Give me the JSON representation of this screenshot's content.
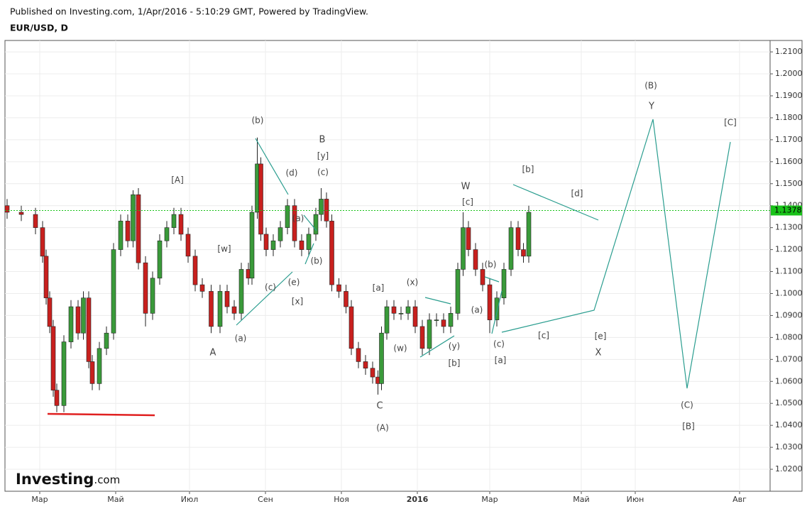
{
  "header": {
    "published": "Published on Investing.com, 1/Apr/2016 - 5:10:29 GMT, Powered by TradingView.",
    "symbol": "EUR/USD, D"
  },
  "logo": {
    "brand": "Investing",
    "suffix": ".com"
  },
  "chart_data": {
    "type": "candlestick",
    "x": [
      0,
      8,
      16,
      20,
      22,
      24,
      26,
      28,
      32,
      36,
      40,
      43,
      46,
      48,
      52,
      56,
      60,
      64,
      68,
      71,
      74,
      78,
      82,
      86,
      90,
      94,
      98,
      102,
      106,
      110,
      115,
      120,
      124,
      128,
      132,
      136,
      138,
      141,
      143,
      146,
      150,
      154,
      158,
      162,
      166,
      170,
      174,
      177,
      180,
      183,
      187,
      191,
      194,
      198,
      202,
      206,
      209,
      211,
      214,
      218,
      222,
      226,
      230,
      234,
      238,
      242,
      246,
      250,
      254,
      257,
      260,
      264,
      268,
      272,
      276,
      280,
      284,
      288,
      291,
      294
    ],
    "open": [
      1.14,
      1.137,
      1.136,
      1.13,
      1.117,
      1.098,
      1.085,
      1.056,
      1.049,
      1.078,
      1.094,
      1.082,
      1.098,
      1.069,
      1.059,
      1.075,
      1.082,
      1.12,
      1.133,
      1.124,
      1.145,
      1.114,
      1.091,
      1.107,
      1.124,
      1.13,
      1.136,
      1.127,
      1.117,
      1.104,
      1.101,
      1.085,
      1.101,
      1.094,
      1.091,
      1.111,
      1.107,
      1.137,
      1.159,
      1.127,
      1.12,
      1.124,
      1.13,
      1.14,
      1.124,
      1.12,
      1.127,
      1.136,
      1.143,
      1.133,
      1.104,
      1.101,
      1.094,
      1.075,
      1.069,
      1.066,
      1.062,
      1.059,
      1.082,
      1.094,
      1.091,
      1.091,
      1.094,
      1.085,
      1.075,
      1.088,
      1.088,
      1.085,
      1.091,
      1.111,
      1.13,
      1.12,
      1.111,
      1.104,
      1.088,
      1.098,
      1.111,
      1.13,
      1.12,
      1.117
    ],
    "high": [
      1.143,
      1.14,
      1.139,
      1.133,
      1.12,
      1.101,
      1.088,
      1.059,
      1.081,
      1.097,
      1.097,
      1.101,
      1.101,
      1.072,
      1.078,
      1.085,
      1.123,
      1.136,
      1.136,
      1.147,
      1.148,
      1.117,
      1.11,
      1.127,
      1.133,
      1.139,
      1.139,
      1.13,
      1.12,
      1.107,
      1.104,
      1.104,
      1.104,
      1.097,
      1.114,
      1.114,
      1.14,
      1.171,
      1.162,
      1.13,
      1.127,
      1.133,
      1.143,
      1.143,
      1.127,
      1.13,
      1.139,
      1.148,
      1.146,
      1.136,
      1.107,
      1.104,
      1.097,
      1.078,
      1.072,
      1.069,
      1.065,
      1.085,
      1.097,
      1.097,
      1.094,
      1.097,
      1.097,
      1.088,
      1.091,
      1.091,
      1.091,
      1.094,
      1.114,
      1.137,
      1.133,
      1.123,
      1.114,
      1.107,
      1.101,
      1.114,
      1.133,
      1.133,
      1.123,
      1.14
    ],
    "low": [
      1.134,
      1.133,
      1.127,
      1.114,
      1.095,
      1.082,
      1.053,
      1.046,
      1.046,
      1.075,
      1.079,
      1.079,
      1.066,
      1.056,
      1.056,
      1.072,
      1.079,
      1.117,
      1.121,
      1.121,
      1.111,
      1.085,
      1.088,
      1.104,
      1.121,
      1.127,
      1.124,
      1.114,
      1.101,
      1.098,
      1.082,
      1.082,
      1.091,
      1.088,
      1.088,
      1.104,
      1.104,
      1.134,
      1.124,
      1.117,
      1.117,
      1.121,
      1.127,
      1.121,
      1.117,
      1.117,
      1.124,
      1.133,
      1.13,
      1.101,
      1.098,
      1.091,
      1.072,
      1.066,
      1.063,
      1.059,
      1.054,
      1.056,
      1.079,
      1.088,
      1.088,
      1.088,
      1.082,
      1.072,
      1.072,
      1.085,
      1.082,
      1.082,
      1.088,
      1.108,
      1.117,
      1.108,
      1.101,
      1.082,
      1.085,
      1.095,
      1.108,
      1.117,
      1.114,
      1.114
    ],
    "close": [
      1.137,
      1.136,
      1.13,
      1.117,
      1.098,
      1.085,
      1.056,
      1.049,
      1.078,
      1.094,
      1.082,
      1.098,
      1.069,
      1.059,
      1.075,
      1.082,
      1.12,
      1.133,
      1.124,
      1.145,
      1.114,
      1.091,
      1.107,
      1.124,
      1.13,
      1.136,
      1.127,
      1.117,
      1.104,
      1.101,
      1.085,
      1.101,
      1.094,
      1.091,
      1.111,
      1.107,
      1.137,
      1.159,
      1.127,
      1.12,
      1.124,
      1.13,
      1.14,
      1.124,
      1.12,
      1.127,
      1.136,
      1.143,
      1.133,
      1.104,
      1.101,
      1.094,
      1.075,
      1.069,
      1.066,
      1.062,
      1.059,
      1.082,
      1.094,
      1.091,
      1.091,
      1.094,
      1.085,
      1.075,
      1.088,
      1.088,
      1.085,
      1.091,
      1.111,
      1.13,
      1.12,
      1.111,
      1.104,
      1.088,
      1.098,
      1.111,
      1.13,
      1.12,
      1.117,
      1.137
    ],
    "up_color": "#3a9a3a",
    "down_color": "#c8201e",
    "last_price": {
      "value": 1.1378,
      "label": "1.1378"
    },
    "last_price_color": "#19c219",
    "xlim": [
      -1.2,
      430
    ],
    "xticks": [
      {
        "value": 18.4,
        "label": "Мар"
      },
      {
        "value": 61.2,
        "label": "Май"
      },
      {
        "value": 102.8,
        "label": "Июл"
      },
      {
        "value": 145.6,
        "label": "Сен"
      },
      {
        "value": 188.4,
        "label": "Ноя"
      },
      {
        "value": 231.2,
        "label": "2016"
      },
      {
        "value": 272,
        "label": "Мар"
      },
      {
        "value": 323.6,
        "label": "Май"
      },
      {
        "value": 354,
        "label": "Июн"
      },
      {
        "value": 412.8,
        "label": "Авг"
      }
    ],
    "ylim": [
      1.01,
      1.2152
    ],
    "yticks": [
      {
        "value": 1.02,
        "label": "1.0200"
      },
      {
        "value": 1.03,
        "label": "1.0300"
      },
      {
        "value": 1.04,
        "label": "1.0400"
      },
      {
        "value": 1.05,
        "label": "1.0500"
      },
      {
        "value": 1.06,
        "label": "1.0600"
      },
      {
        "value": 1.07,
        "label": "1.0700"
      },
      {
        "value": 1.08,
        "label": "1.0800"
      },
      {
        "value": 1.09,
        "label": "1.0900"
      },
      {
        "value": 1.1,
        "label": "1.1000"
      },
      {
        "value": 1.11,
        "label": "1.1100"
      },
      {
        "value": 1.12,
        "label": "1.1200"
      },
      {
        "value": 1.13,
        "label": "1.1300"
      },
      {
        "value": 1.14,
        "label": "1.1400"
      },
      {
        "value": 1.15,
        "label": "1.1500"
      },
      {
        "value": 1.16,
        "label": "1.1600"
      },
      {
        "value": 1.17,
        "label": "1.1700"
      },
      {
        "value": 1.18,
        "label": "1.1800"
      },
      {
        "value": 1.19,
        "label": "1.1900"
      },
      {
        "value": 1.2,
        "label": "1.2000"
      },
      {
        "value": 1.21,
        "label": "1.2100"
      }
    ],
    "grid": true,
    "annotations": [
      "(b)",
      "[A]",
      "(d)",
      "B",
      "[y]",
      "(c)",
      "(a)",
      "[w]",
      "(b)",
      "(c)",
      "(e)",
      "[x]",
      "(a)",
      "A",
      "[a]",
      "(x)",
      "(w)",
      "(y)",
      "[b]",
      "C",
      "(A)",
      "W",
      "[c]",
      "[b]",
      "[d]",
      "(b)",
      "(a)",
      "(c)",
      "[a]",
      "[c]",
      "[e]",
      "X",
      "(B)",
      "Y",
      "[C]",
      "(C)",
      "[B]"
    ]
  }
}
